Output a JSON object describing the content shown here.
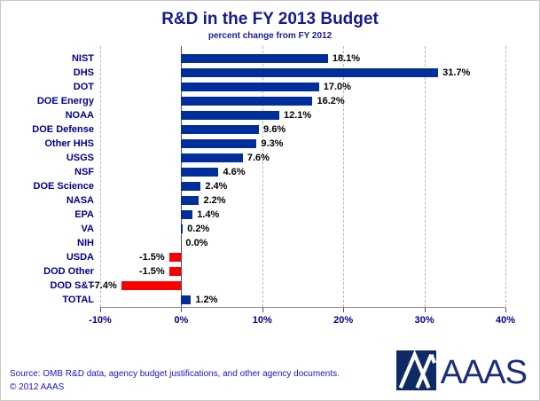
{
  "title": "R&D in the FY 2013 Budget",
  "subtitle": "percent change from FY 2012",
  "chart_data": {
    "type": "bar",
    "orientation": "horizontal",
    "title": "R&D in the FY 2013 Budget",
    "subtitle": "percent change from FY 2012",
    "categories": [
      "NIST",
      "DHS",
      "DOT",
      "DOE Energy",
      "NOAA",
      "DOE Defense",
      "Other HHS",
      "USGS",
      "NSF",
      "DOE Science",
      "NASA",
      "EPA",
      "VA",
      "NIH",
      "USDA",
      "DOD Other",
      "DOD S&T",
      "TOTAL"
    ],
    "values": [
      18.1,
      31.7,
      17.0,
      16.2,
      12.1,
      9.6,
      9.3,
      7.6,
      4.6,
      2.4,
      2.2,
      1.4,
      0.2,
      0.0,
      -1.5,
      -1.5,
      -7.4,
      1.2
    ],
    "value_labels": [
      "18.1%",
      "31.7%",
      "17.0%",
      "16.2%",
      "12.1%",
      "9.6%",
      "9.3%",
      "7.6%",
      "4.6%",
      "2.4%",
      "2.2%",
      "1.4%",
      "0.2%",
      "0.0%",
      "-1.5%",
      "-1.5%",
      "-7.4%",
      "1.2%"
    ],
    "xlim": [
      -10,
      40
    ],
    "xtick_values": [
      -10,
      0,
      10,
      20,
      30,
      40
    ],
    "xtick_labels": [
      "-10%",
      "0%",
      "10%",
      "20%",
      "30%",
      "40%"
    ],
    "positive_color": "#002f9c",
    "negative_color": "#fb0000",
    "grid": "vertical-dashed",
    "legend": "none"
  },
  "footer": {
    "source": "Source: OMB R&D data, agency budget justifications, and other agency documents.",
    "copyright": "© 2012 AAAS"
  },
  "logo": {
    "text": "AAAS"
  }
}
